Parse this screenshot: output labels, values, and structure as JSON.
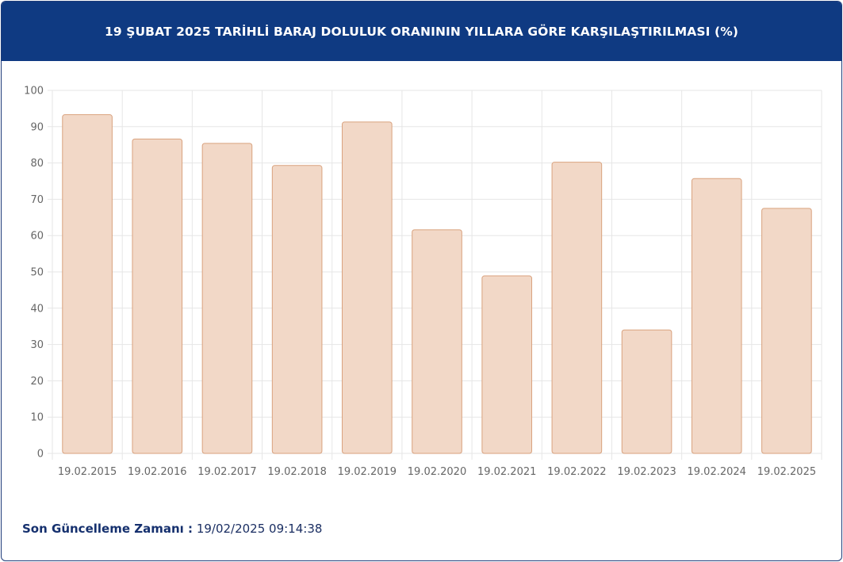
{
  "header": {
    "title": "19 ŞUBAT 2025 TARİHLİ BARAJ DOLULUK ORANININ YILLARA GÖRE KARŞILAŞTIRILMASI (%)"
  },
  "footer": {
    "label": "Son Güncelleme Zamanı :",
    "value": "19/02/2025 09:14:38"
  },
  "chart_data": {
    "type": "bar",
    "title": "19 ŞUBAT 2025 TARİHLİ BARAJ DOLULUK ORANININ YILLARA GÖRE KARŞILAŞTIRILMASI (%)",
    "categories": [
      "19.02.2015",
      "19.02.2016",
      "19.02.2017",
      "19.02.2018",
      "19.02.2019",
      "19.02.2020",
      "19.02.2021",
      "19.02.2022",
      "19.02.2023",
      "19.02.2024",
      "19.02.2025"
    ],
    "values": [
      93.3,
      86.6,
      85.4,
      79.3,
      91.3,
      61.6,
      48.9,
      80.2,
      34.0,
      75.7,
      67.5
    ],
    "yticks": [
      "0",
      "10",
      "20",
      "30",
      "40",
      "50",
      "60",
      "70",
      "80",
      "90",
      "100"
    ],
    "ylim": [
      0,
      100
    ],
    "grid": true,
    "colors": {
      "bar_fill": "#f2d8c7",
      "bar_stroke": "#d9a27e",
      "grid": "#e6e6e6",
      "tick_text": "#666666"
    }
  }
}
